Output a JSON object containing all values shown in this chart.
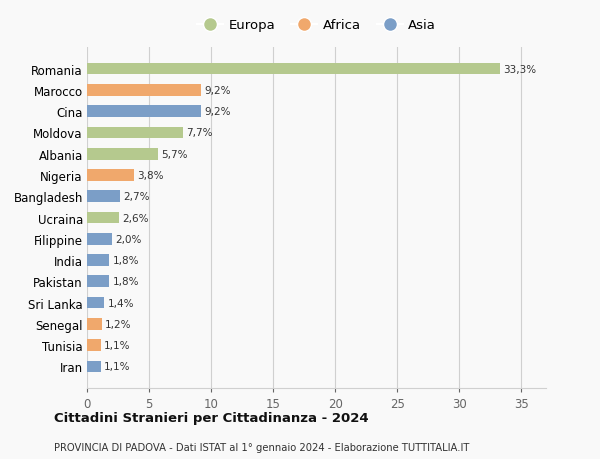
{
  "countries": [
    "Romania",
    "Marocco",
    "Cina",
    "Moldova",
    "Albania",
    "Nigeria",
    "Bangladesh",
    "Ucraina",
    "Filippine",
    "India",
    "Pakistan",
    "Sri Lanka",
    "Senegal",
    "Tunisia",
    "Iran"
  ],
  "values": [
    33.3,
    9.2,
    9.2,
    7.7,
    5.7,
    3.8,
    2.7,
    2.6,
    2.0,
    1.8,
    1.8,
    1.4,
    1.2,
    1.1,
    1.1
  ],
  "labels": [
    "33,3%",
    "9,2%",
    "9,2%",
    "7,7%",
    "5,7%",
    "3,8%",
    "2,7%",
    "2,6%",
    "2,0%",
    "1,8%",
    "1,8%",
    "1,4%",
    "1,2%",
    "1,1%",
    "1,1%"
  ],
  "continents": [
    "Europa",
    "Africa",
    "Asia",
    "Europa",
    "Europa",
    "Africa",
    "Asia",
    "Europa",
    "Asia",
    "Asia",
    "Asia",
    "Asia",
    "Africa",
    "Africa",
    "Asia"
  ],
  "colors": {
    "Europa": "#b5c98e",
    "Africa": "#f0a86c",
    "Asia": "#7b9ec7"
  },
  "bar_colors": [
    "#b5c98e",
    "#f0a86c",
    "#7b9ec7",
    "#b5c98e",
    "#b5c98e",
    "#f0a86c",
    "#7b9ec7",
    "#b5c98e",
    "#7b9ec7",
    "#7b9ec7",
    "#7b9ec7",
    "#7b9ec7",
    "#f0a86c",
    "#f0a86c",
    "#7b9ec7"
  ],
  "xlim": [
    0,
    37
  ],
  "xticks": [
    0,
    5,
    10,
    15,
    20,
    25,
    30,
    35
  ],
  "title": "Cittadini Stranieri per Cittadinanza - 2024",
  "subtitle": "PROVINCIA DI PADOVA - Dati ISTAT al 1° gennaio 2024 - Elaborazione TUTTITALIA.IT",
  "background_color": "#f9f9f9",
  "grid_color": "#d0d0d0",
  "legend_order": [
    "Europa",
    "Africa",
    "Asia"
  ]
}
